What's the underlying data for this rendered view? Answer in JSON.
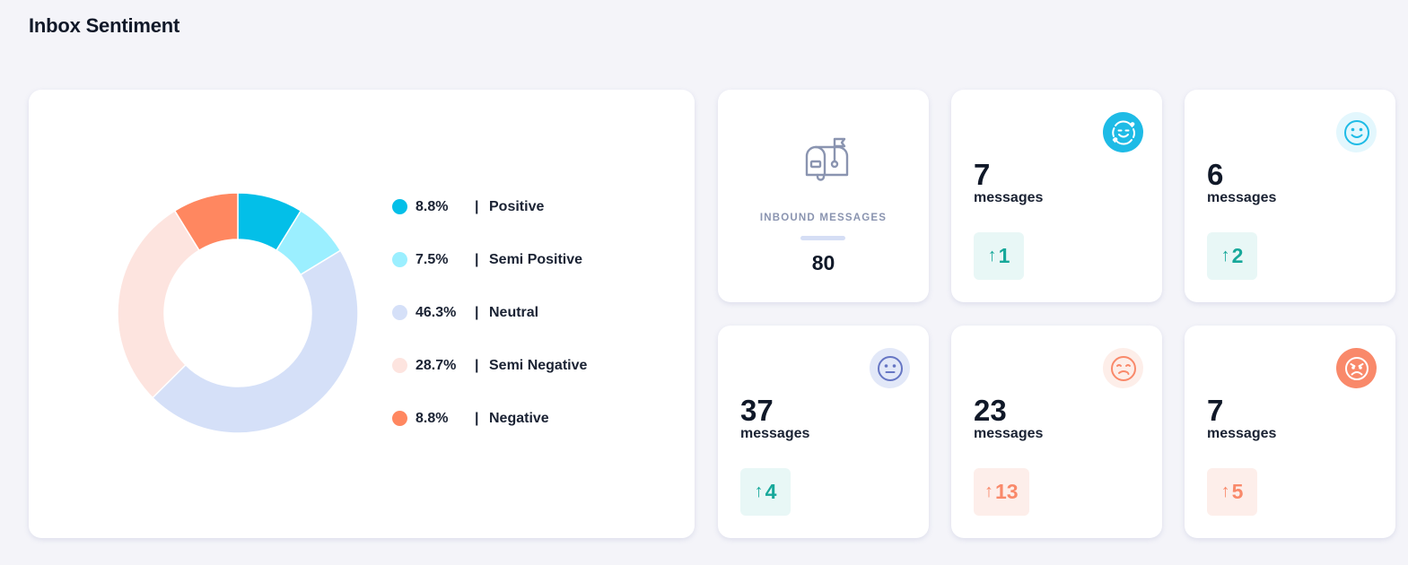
{
  "header": {
    "title": "Inbox Sentiment"
  },
  "chart_data": {
    "type": "pie",
    "variant": "donut",
    "title": "",
    "categories": [
      "Positive",
      "Semi Positive",
      "Neutral",
      "Semi Negative",
      "Negative"
    ],
    "values": [
      8.8,
      7.5,
      46.3,
      28.7,
      8.8
    ],
    "value_labels": [
      "8.8%",
      "7.5%",
      "46.3%",
      "28.7%",
      "8.8%"
    ],
    "colors": [
      "#03bfe8",
      "#9befff",
      "#d5e0f8",
      "#fde4df",
      "#ff8760"
    ],
    "legend_position": "right",
    "separator": "|"
  },
  "inbound": {
    "label": "INBOUND MESSAGES",
    "value": "80",
    "icon": "mailbox-icon"
  },
  "sentiment_cards": [
    {
      "name": "positive",
      "count": "7",
      "unit": "messages",
      "delta": "1",
      "trend": "up",
      "tone": "good",
      "icon": "love-face-icon",
      "face_bg": "#1ebbe6",
      "face_fg": "#ffffff"
    },
    {
      "name": "semi-positive",
      "count": "6",
      "unit": "messages",
      "delta": "2",
      "trend": "up",
      "tone": "good",
      "icon": "smile-face-icon",
      "face_bg": "#e3f7fd",
      "face_fg": "#1ebbe6"
    },
    {
      "name": "neutral",
      "count": "37",
      "unit": "messages",
      "delta": "4",
      "trend": "up",
      "tone": "good",
      "icon": "neutral-face-icon",
      "face_bg": "#e2e8f8",
      "face_fg": "#6676c4"
    },
    {
      "name": "semi-negative",
      "count": "23",
      "unit": "messages",
      "delta": "13",
      "trend": "up",
      "tone": "bad",
      "icon": "unamused-face-icon",
      "face_bg": "#fdeee9",
      "face_fg": "#f9896a"
    },
    {
      "name": "negative",
      "count": "7",
      "unit": "messages",
      "delta": "5",
      "trend": "up",
      "tone": "bad",
      "icon": "angry-face-icon",
      "face_bg": "#f9896a",
      "face_fg": "#ffffff"
    }
  ]
}
